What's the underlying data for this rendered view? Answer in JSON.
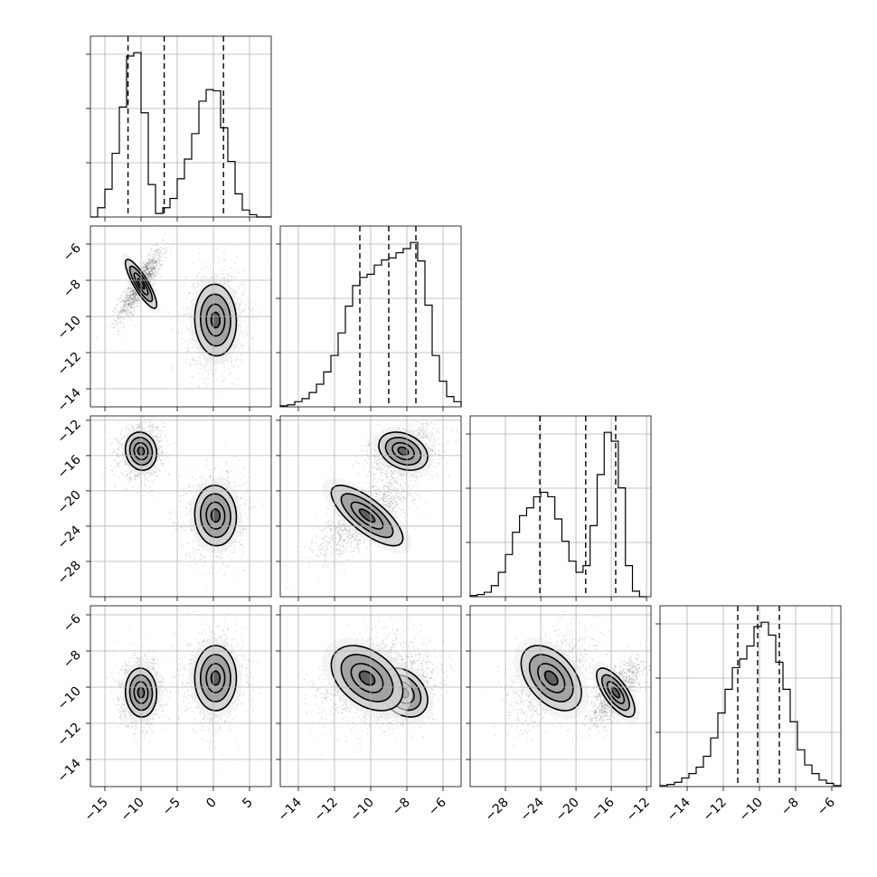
{
  "chart_data": {
    "type": "corner",
    "parameters": [
      {
        "index": 0,
        "range": [
          -17,
          8
        ],
        "ticks": [
          -15,
          -10,
          -5,
          0,
          5
        ]
      },
      {
        "index": 1,
        "range": [
          -15,
          -5
        ],
        "ticks": [
          -14,
          -12,
          -10,
          -8,
          -6
        ]
      },
      {
        "index": 2,
        "range": [
          -32,
          -11.5
        ],
        "ticks": [
          -28,
          -24,
          -20,
          -16,
          -12
        ]
      },
      {
        "index": 3,
        "range": [
          -15.5,
          -5.5
        ],
        "ticks": [
          -14,
          -12,
          -10,
          -8,
          -6
        ]
      }
    ],
    "grid": true,
    "marginals": [
      {
        "param": 0,
        "quantiles": [
          -11.8,
          -6.8,
          1.4
        ],
        "edges": [
          -17,
          -16,
          -15,
          -14,
          -13,
          -12,
          -11,
          -10,
          -9,
          -8,
          -7,
          -6,
          -5,
          -4,
          -3,
          -2,
          -1,
          0,
          1,
          2,
          3,
          4,
          5,
          6,
          7,
          8
        ],
        "counts": [
          0,
          8,
          24,
          55,
          95,
          139,
          142,
          90,
          28,
          3,
          8,
          16,
          33,
          50,
          72,
          100,
          110,
          109,
          77,
          48,
          20,
          6,
          2,
          0,
          0
        ]
      },
      {
        "param": 1,
        "quantiles": [
          -10.6,
          -9.0,
          -7.5
        ],
        "edges": [
          -15,
          -14.6,
          -14.2,
          -13.8,
          -13.4,
          -13.0,
          -12.6,
          -12.2,
          -11.8,
          -11.4,
          -11.0,
          -10.6,
          -10.2,
          -9.8,
          -9.4,
          -9.0,
          -8.6,
          -8.2,
          -7.8,
          -7.4,
          -7.0,
          -6.6,
          -6.2,
          -5.8,
          -5.4,
          -5.0
        ],
        "counts": [
          1,
          2,
          5,
          8,
          14,
          22,
          34,
          50,
          72,
          98,
          118,
          126,
          129,
          138,
          143,
          145,
          150,
          154,
          160,
          142,
          99,
          50,
          25,
          10,
          5
        ]
      },
      {
        "param": 2,
        "quantiles": [
          -24.1,
          -18.9,
          -15.5
        ],
        "edges": [
          -32,
          -31.2,
          -30.4,
          -29.6,
          -28.8,
          -28.0,
          -27.2,
          -26.4,
          -25.6,
          -24.8,
          -24.0,
          -23.2,
          -22.4,
          -21.6,
          -20.8,
          -20.0,
          -19.2,
          -18.4,
          -17.6,
          -16.8,
          -16.0,
          -15.2,
          -14.4,
          -13.6,
          -12.8,
          -12.0
        ],
        "counts": [
          1,
          2,
          4,
          10,
          22,
          38,
          58,
          73,
          80,
          90,
          94,
          90,
          70,
          50,
          32,
          22,
          28,
          64,
          110,
          148,
          140,
          98,
          28,
          5,
          0
        ]
      },
      {
        "param": 3,
        "quantiles": [
          -11.2,
          -10.1,
          -8.9
        ],
        "edges": [
          -15.5,
          -15.1,
          -14.7,
          -14.3,
          -13.9,
          -13.5,
          -13.1,
          -12.7,
          -12.3,
          -11.9,
          -11.5,
          -11.1,
          -10.7,
          -10.3,
          -9.9,
          -9.5,
          -9.1,
          -8.7,
          -8.3,
          -7.9,
          -7.5,
          -7.1,
          -6.7,
          -6.3,
          -5.9,
          -5.5
        ],
        "counts": [
          1,
          2,
          4,
          8,
          12,
          18,
          28,
          45,
          68,
          90,
          110,
          118,
          130,
          148,
          152,
          140,
          115,
          90,
          60,
          34,
          20,
          12,
          6,
          3,
          1
        ]
      }
    ],
    "clusters": [
      {
        "mean": [
          -10,
          -8.2,
          -15.5,
          -10.3
        ],
        "sd": [
          1.2,
          0.75,
          1.2,
          0.75
        ]
      },
      {
        "mean": [
          0.3,
          -10.2,
          -22.8,
          -9.5
        ],
        "sd": [
          1.6,
          1.1,
          1.9,
          1.0
        ]
      }
    ],
    "correlations": [
      {
        "pair": [
          0,
          1
        ],
        "clusters": [
          0.85,
          0.05
        ]
      },
      {
        "pair": [
          0,
          2
        ],
        "clusters": [
          0.1,
          0.05
        ]
      },
      {
        "pair": [
          0,
          3
        ],
        "clusters": [
          0.05,
          0.0
        ]
      },
      {
        "pair": [
          1,
          2
        ],
        "clusters": [
          0.3,
          0.75
        ]
      },
      {
        "pair": [
          1,
          3
        ],
        "clusters": [
          0.3,
          0.4
        ]
      },
      {
        "pair": [
          2,
          3
        ],
        "clusters": [
          0.7,
          0.45
        ]
      }
    ],
    "contour_levels_sigma": [
      0.8,
      1.3,
      1.8
    ]
  }
}
